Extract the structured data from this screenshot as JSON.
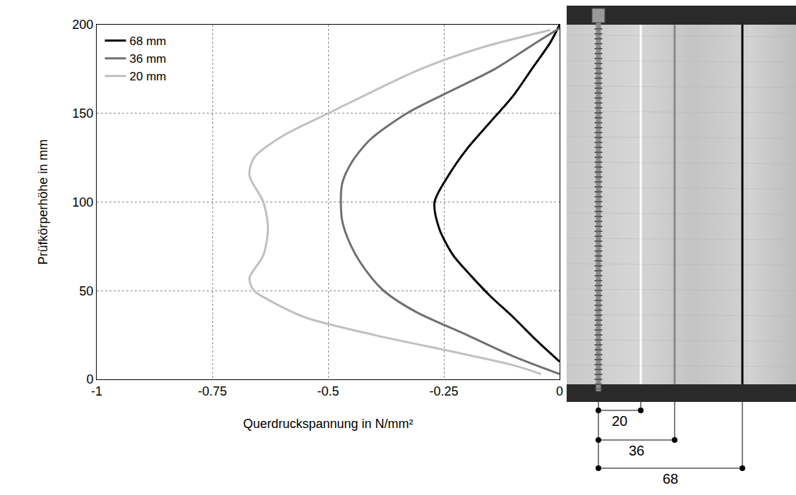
{
  "chart_data": {
    "type": "line",
    "xlabel": "Querdruckspannung in N/mm²",
    "ylabel": "Prüfkörperhöhe in mm",
    "xlim": [
      -1,
      0
    ],
    "ylim": [
      0,
      200
    ],
    "xticks": [
      -1,
      -0.75,
      -0.5,
      -0.25,
      0
    ],
    "yticks": [
      0,
      50,
      100,
      150,
      200
    ],
    "grid": true,
    "legend": "top left",
    "series": [
      {
        "name": "68 mm",
        "color": "#000000",
        "x": [
          0,
          -0.02,
          -0.06,
          -0.1,
          -0.15,
          -0.2,
          -0.24,
          -0.27,
          -0.26,
          -0.23,
          -0.19,
          -0.15,
          -0.1,
          -0.05,
          0
        ],
        "y": [
          200,
          190,
          175,
          160,
          145,
          130,
          115,
          100,
          85,
          70,
          58,
          47,
          35,
          22,
          10
        ]
      },
      {
        "name": "36 mm",
        "color": "#707070",
        "x": [
          0,
          -0.05,
          -0.14,
          -0.24,
          -0.33,
          -0.41,
          -0.45,
          -0.47,
          -0.47,
          -0.45,
          -0.42,
          -0.38,
          -0.31,
          -0.2,
          -0.1,
          0
        ],
        "y": [
          198,
          190,
          175,
          162,
          150,
          135,
          122,
          110,
          90,
          75,
          62,
          50,
          38,
          25,
          13,
          3
        ]
      },
      {
        "name": "20 mm",
        "color": "#c0c0c0",
        "x": [
          -0.02,
          -0.17,
          -0.3,
          -0.5,
          -0.6,
          -0.66,
          -0.67,
          -0.64,
          -0.63,
          -0.64,
          -0.67,
          -0.66,
          -0.63,
          -0.55,
          -0.4,
          -0.22,
          -0.1,
          -0.04
        ],
        "y": [
          197,
          187,
          175,
          150,
          137,
          125,
          115,
          100,
          85,
          70,
          57,
          50,
          45,
          35,
          25,
          15,
          8,
          3
        ]
      }
    ]
  },
  "photo": {
    "distances": [
      20,
      36,
      68
    ]
  }
}
